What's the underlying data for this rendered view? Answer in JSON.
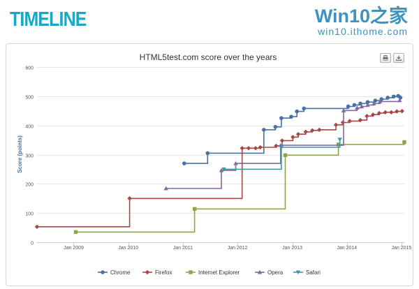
{
  "header": {
    "logo_text": "TIMELINE",
    "brand_title": "Win10之家",
    "brand_url": "win10.ithome.com"
  },
  "colors": {
    "logo": "#18a8c8",
    "brand": "#3a93c0",
    "Chrome": "#4572a7",
    "Firefox": "#aa4643",
    "Internet Explorer": "#89a54e",
    "Opera": "#80699b",
    "Safari": "#3d96ae"
  },
  "toolbar": {
    "print_icon": "printer-icon",
    "export_icon": "download-icon"
  },
  "chart_data": {
    "type": "line",
    "step": true,
    "title": "HTML5test.com score over the years",
    "xlabel": "",
    "ylabel": "Score (points)",
    "ylim": [
      0,
      600
    ],
    "yticks": [
      0,
      100,
      200,
      300,
      400,
      500,
      600
    ],
    "xlim": [
      "2008-05-01",
      "2015-01-20"
    ],
    "xticks": [
      "Jan 2009",
      "Jan 2010",
      "Jan 2011",
      "Jan 2012",
      "Jan 2013",
      "Jan 2014",
      "Jan 2015"
    ],
    "grid": true,
    "legend": "bottom-center",
    "series": [
      {
        "name": "Chrome",
        "marker": "circle",
        "points": [
          [
            "2011-01-10",
            270
          ],
          [
            "2011-06-15",
            305
          ],
          [
            "2012-06-25",
            385
          ],
          [
            "2012-09-10",
            395
          ],
          [
            "2012-10-20",
            425
          ],
          [
            "2012-12-25",
            430
          ],
          [
            "2013-02-01",
            448
          ],
          [
            "2013-03-20",
            458
          ],
          [
            "2014-01-10",
            465
          ],
          [
            "2014-02-20",
            470
          ],
          [
            "2014-04-01",
            475
          ],
          [
            "2014-05-20",
            480
          ],
          [
            "2014-07-10",
            485
          ],
          [
            "2014-08-20",
            490
          ],
          [
            "2014-10-01",
            495
          ],
          [
            "2014-11-10",
            499
          ],
          [
            "2014-12-10",
            501
          ],
          [
            "2014-12-25",
            495
          ]
        ]
      },
      {
        "name": "Firefox",
        "marker": "diamond",
        "points": [
          [
            "2008-05-01",
            53
          ],
          [
            "2010-01-10",
            150
          ],
          [
            "2012-02-01",
            322
          ],
          [
            "2012-03-15",
            322
          ],
          [
            "2012-05-01",
            322
          ],
          [
            "2012-06-01",
            325
          ],
          [
            "2012-09-15",
            330
          ],
          [
            "2012-10-25",
            348
          ],
          [
            "2013-01-05",
            360
          ],
          [
            "2013-02-10",
            370
          ],
          [
            "2013-04-01",
            378
          ],
          [
            "2013-05-15",
            383
          ],
          [
            "2013-07-01",
            385
          ],
          [
            "2013-10-20",
            402
          ],
          [
            "2013-12-05",
            410
          ],
          [
            "2014-01-20",
            415
          ],
          [
            "2014-04-01",
            418
          ],
          [
            "2014-05-15",
            432
          ],
          [
            "2014-06-25",
            437
          ],
          [
            "2014-08-05",
            442
          ],
          [
            "2014-09-15",
            445
          ],
          [
            "2014-10-25",
            445
          ],
          [
            "2014-12-01",
            448
          ],
          [
            "2015-01-05",
            449
          ]
        ]
      },
      {
        "name": "Internet Explorer",
        "marker": "square",
        "points": [
          [
            "2009-01-15",
            35
          ],
          [
            "2011-03-20",
            114
          ],
          [
            "2012-11-15",
            298
          ],
          [
            "2013-11-05",
            335
          ],
          [
            "2015-01-20",
            343
          ]
        ]
      },
      {
        "name": "Opera",
        "marker": "triangle",
        "points": [
          [
            "2010-09-10",
            184
          ],
          [
            "2011-09-15",
            246
          ],
          [
            "2011-12-20",
            270
          ],
          [
            "2012-10-15",
            332
          ],
          [
            "2013-12-10",
            451
          ],
          [
            "2014-03-10",
            460
          ],
          [
            "2014-04-10",
            465
          ],
          [
            "2014-05-20",
            470
          ],
          [
            "2014-07-01",
            475
          ],
          [
            "2014-08-10",
            482
          ],
          [
            "2014-12-20",
            486
          ]
        ]
      },
      {
        "name": "Safari",
        "marker": "triangle-down",
        "points": [
          [
            "2011-10-01",
            250
          ],
          [
            "2012-10-20",
            325
          ],
          [
            "2013-11-15",
            352
          ]
        ]
      }
    ]
  }
}
